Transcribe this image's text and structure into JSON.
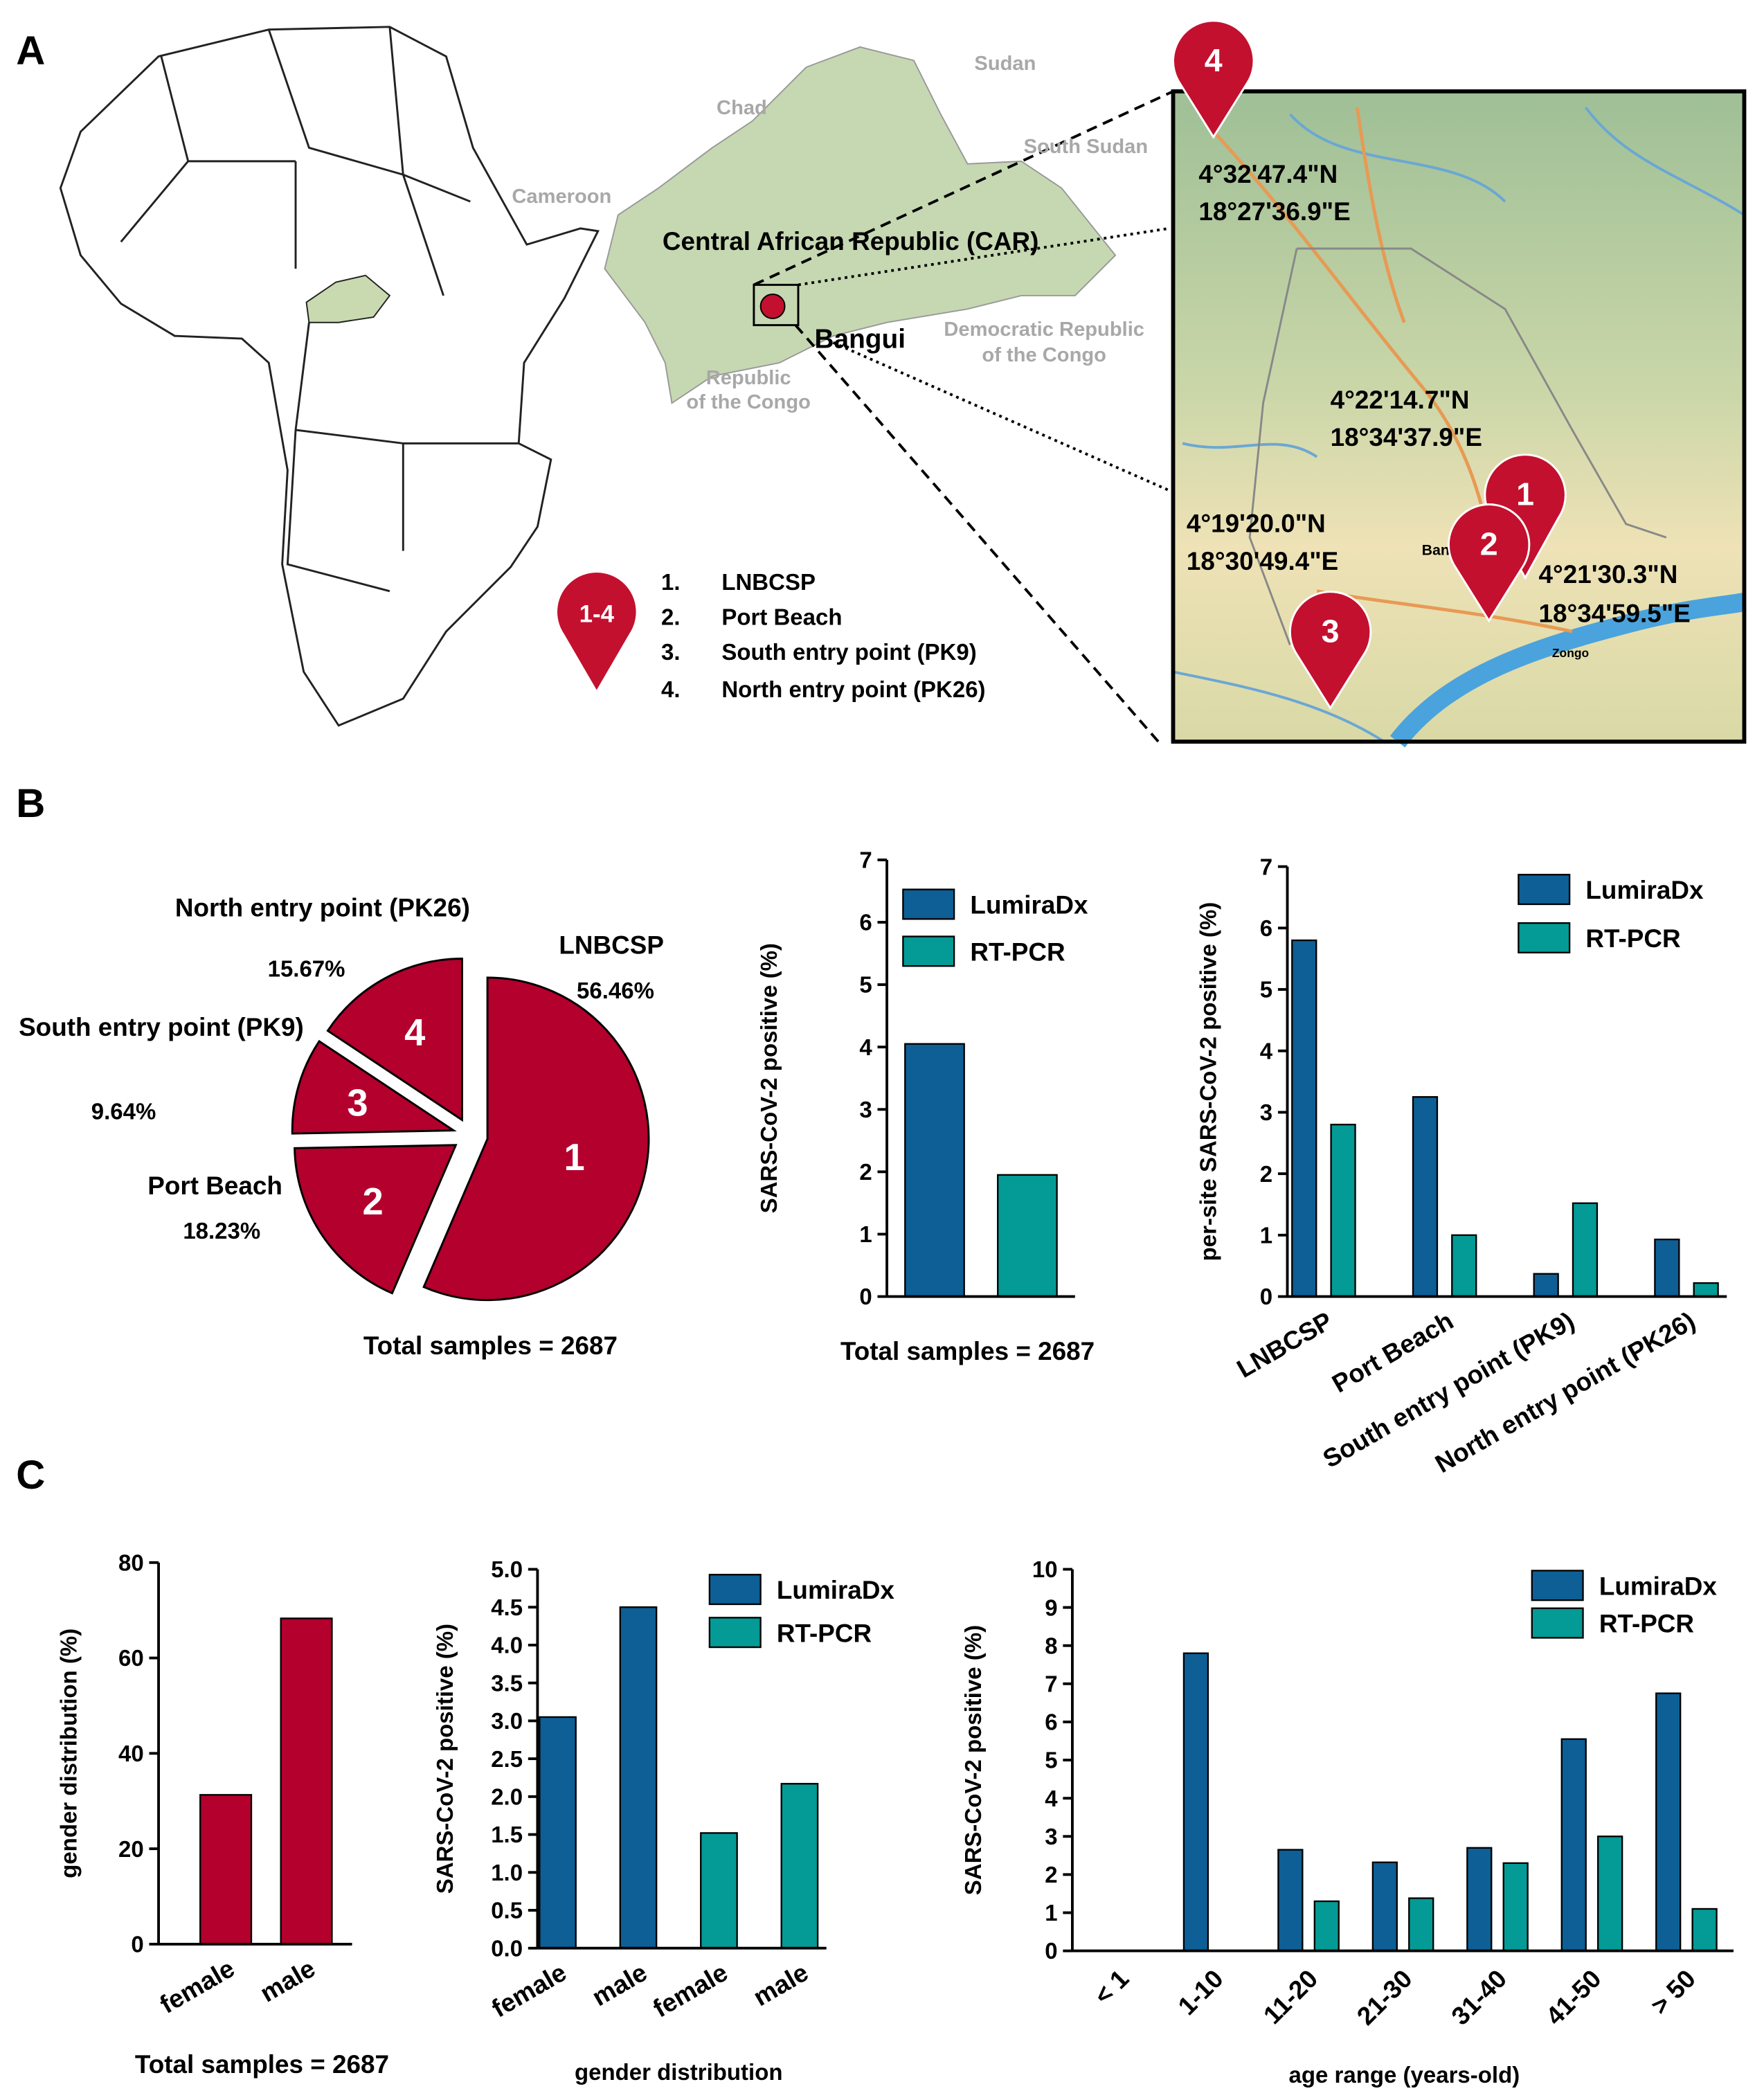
{
  "panels": [
    "A",
    "B",
    "C"
  ],
  "map": {
    "country_labels": [
      "Sudan",
      "Chad",
      "South Sudan",
      "Cameroon",
      "Democratic Republic",
      "of the Congo",
      "Republic",
      "of the Congo"
    ],
    "car": "Central African Republic (CAR)",
    "city": "Bangui",
    "pin_legend": "1-4",
    "sites": [
      {
        "number": "1.",
        "label": "LNBCSP"
      },
      {
        "number": "2.",
        "label": "Port Beach"
      },
      {
        "number": "3.",
        "label": "South entry point (PK9)"
      },
      {
        "number": "4.",
        "label": "North entry point (PK26)"
      }
    ],
    "inset": {
      "pins": [
        "1",
        "2",
        "3",
        "4"
      ],
      "coordinates": [
        [
          "4°32'47.4\"N",
          "18°27'36.9\"E"
        ],
        [
          "4°22'14.7\"N",
          "18°34'37.9\"E"
        ],
        [
          "4°19'20.0\"N",
          "18°30'49.4\"E"
        ],
        [
          "4°21'30.3\"N",
          "18°34'59.5\"E"
        ]
      ],
      "places": [
        "Bangui",
        "Zongo"
      ]
    }
  },
  "chart_data": [
    {
      "type": "pie",
      "categories": [
        "LNBCSP",
        "Port Beach",
        "South entry point (PK9)",
        "North entry point (PK26)"
      ],
      "values": [
        56.46,
        18.23,
        9.64,
        15.67
      ],
      "value_labels": [
        "56.46%",
        "18.23%",
        "9.64%",
        "15.67%"
      ],
      "slice_labels": [
        "1",
        "2",
        "3",
        "4"
      ],
      "color": "#b3002d",
      "note": "Total samples = 2687"
    },
    {
      "type": "bar",
      "categories": [
        null
      ],
      "series": [
        {
          "name": "LumiraDx",
          "color": "#0d5f96",
          "values": [
            4.05
          ]
        },
        {
          "name": "RT-PCR",
          "color": "#049a95",
          "values": [
            1.95
          ]
        }
      ],
      "ylabel": "SARS-CoV-2 positive (%)",
      "ylim": [
        0,
        7
      ],
      "yticks": [
        0,
        1,
        2,
        3,
        4,
        5,
        6,
        7
      ],
      "note": "Total  samples = 2687"
    },
    {
      "type": "bar",
      "categories": [
        "LNBCSP",
        "Port Beach",
        "South entry point (PK9)",
        "North entry point (PK26)"
      ],
      "series": [
        {
          "name": "LumiraDx",
          "color": "#0d5f96",
          "values": [
            5.8,
            3.25,
            0.37,
            0.93
          ]
        },
        {
          "name": "RT-PCR",
          "color": "#049a95",
          "values": [
            2.8,
            1.0,
            1.52,
            0.22
          ]
        }
      ],
      "ylabel": "per-site SARS-CoV-2 positive (%)",
      "ylim": [
        0,
        7
      ],
      "yticks": [
        0,
        1,
        2,
        3,
        4,
        5,
        6,
        7
      ]
    },
    {
      "type": "bar",
      "categories": [
        "female",
        "male"
      ],
      "series": [
        {
          "color": "#b3002d",
          "values": [
            31.3,
            68.3
          ]
        }
      ],
      "ylabel": "gender distribution (%)",
      "ylim": [
        0,
        80
      ],
      "yticks": [
        0,
        20,
        40,
        60,
        80
      ],
      "note": "Total  samples = 2687"
    },
    {
      "type": "bar",
      "categories": [
        "female",
        "male",
        "female",
        "male"
      ],
      "series": [
        {
          "name": "LumiraDx",
          "color": "#0d5f96",
          "values": [
            3.05,
            4.5,
            null,
            null
          ]
        },
        {
          "name": "RT-PCR",
          "color": "#049a95",
          "values": [
            null,
            null,
            1.52,
            2.17
          ]
        }
      ],
      "ylabel": "SARS-CoV-2 positive (%)",
      "xlabel": "gender distribution",
      "ylim": [
        0,
        5
      ],
      "yticks": [
        {
          "value": 0,
          "label": "0.0"
        },
        {
          "value": 0.5,
          "label": "0.5"
        },
        {
          "value": 1,
          "label": "1.0"
        },
        {
          "value": 1.5,
          "label": "1.5"
        },
        {
          "value": 2,
          "label": "2.0"
        },
        {
          "value": 2.5,
          "label": "2.5"
        },
        {
          "value": 3,
          "label": "3.0"
        },
        {
          "value": 3.5,
          "label": "3.5"
        },
        {
          "value": 4,
          "label": "4.0"
        },
        {
          "value": 4.5,
          "label": "4.5"
        },
        {
          "value": 5,
          "label": "5.0"
        }
      ]
    },
    {
      "type": "bar",
      "categories": [
        "< 1",
        "1-10",
        "11-20",
        "21-30",
        "31-40",
        "41-50",
        "> 50"
      ],
      "series": [
        {
          "name": "LumiraDx",
          "color": "#0d5f96",
          "values": [
            0,
            7.8,
            2.65,
            2.32,
            2.7,
            5.55,
            6.75
          ]
        },
        {
          "name": "RT-PCR",
          "color": "#049a95",
          "values": [
            0,
            0,
            1.3,
            1.38,
            2.3,
            3.0,
            1.1
          ]
        }
      ],
      "ylabel": "SARS-CoV-2 positive (%)",
      "xlabel": "age range (years-old)",
      "ylim": [
        0,
        10
      ],
      "yticks": [
        0,
        1,
        2,
        3,
        4,
        5,
        6,
        7,
        8,
        9,
        10
      ]
    }
  ]
}
